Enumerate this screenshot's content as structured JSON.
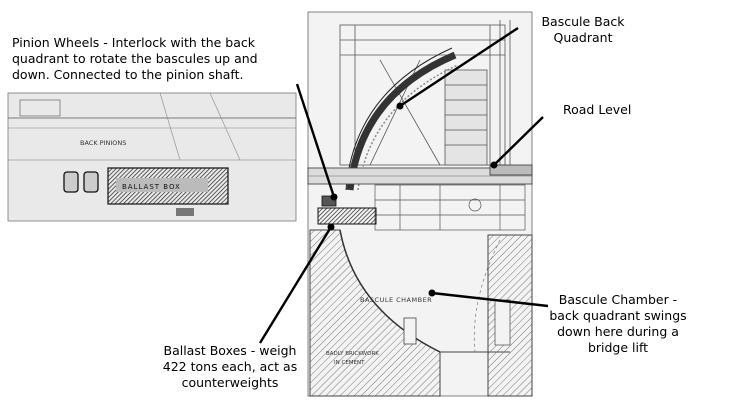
{
  "annotations": {
    "pinion_wheels": {
      "lines": [
        "Pinion Wheels - Interlock with the back",
        "quadrant to rotate the bascules up and",
        "down. Connected to the pinion shaft."
      ]
    },
    "back_quadrant": {
      "lines": [
        "Bascule Back",
        "Quadrant"
      ]
    },
    "road_level": {
      "lines": [
        "Road Level"
      ]
    },
    "ballast_boxes": {
      "lines": [
        "Ballast Boxes - weigh",
        "422 tons each, act as",
        "counterweights"
      ]
    },
    "bascule_chamber": {
      "lines": [
        "Bascule Chamber -",
        "back quadrant swings",
        "down here during a",
        "bridge lift"
      ]
    }
  },
  "drawing_text": {
    "inset_pinion": "BACK PINIONS",
    "inset_ballast": "BALLAST BOX",
    "chamber": "BASCULE CHAMBER",
    "brickwork_1": "BADLY BRICKWORK",
    "brickwork_2": "IN CEMENT"
  }
}
